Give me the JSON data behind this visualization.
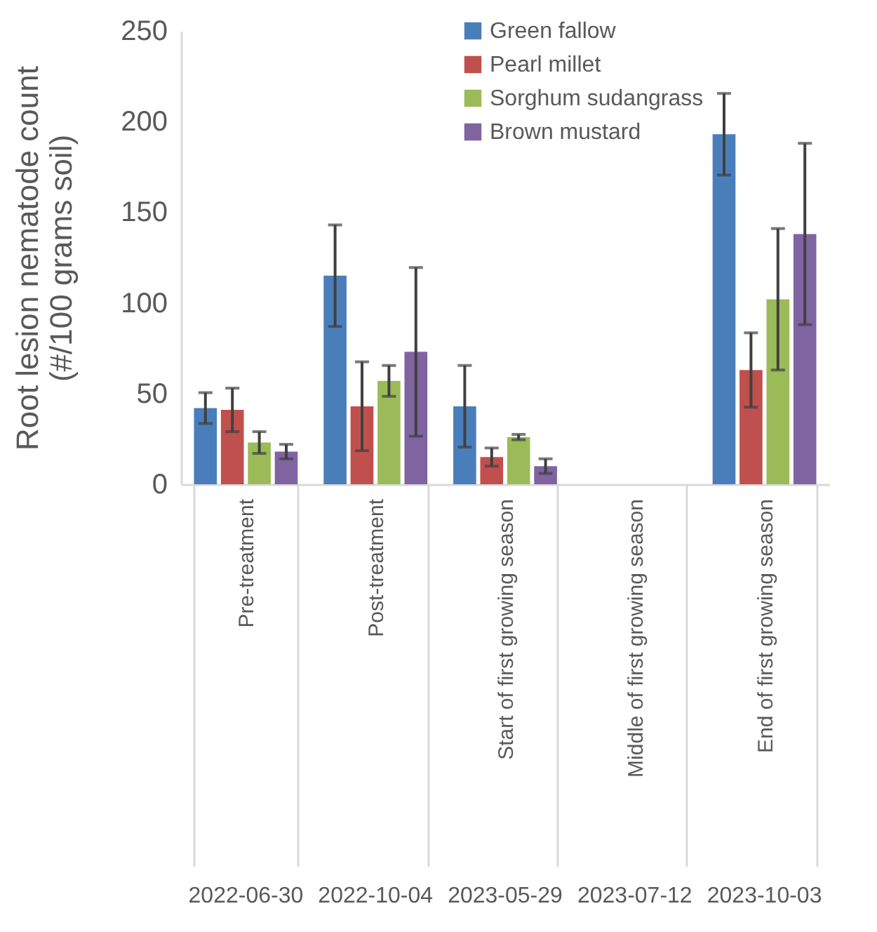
{
  "chart_data": {
    "type": "bar",
    "ylabel": "Root lesion nematode count\n(#/100 grams soil)",
    "categories": [
      "Pre-treatment",
      "Post-treatment",
      "Start of first growing season",
      "Middle of first growing season",
      "End of first growing season"
    ],
    "series": [
      {
        "name": "Green fallow",
        "color": "#4a7ebb",
        "values": [
          42,
          115,
          43,
          0,
          193
        ],
        "errors": [
          8.5,
          28,
          22.5,
          null,
          22.5
        ]
      },
      {
        "name": "Pearl millet",
        "color": "#c0504d",
        "values": [
          41,
          43,
          15,
          0,
          63
        ],
        "errors": [
          12,
          24.5,
          5,
          null,
          20.5
        ]
      },
      {
        "name": "Sorghum sudangrass",
        "color": "#9bbb59",
        "values": [
          23,
          57,
          26,
          0,
          102
        ],
        "errors": [
          6,
          8.5,
          1.5,
          null,
          39
        ]
      },
      {
        "name": "Brown mustard",
        "color": "#8064a2",
        "values": [
          18,
          73,
          10,
          0,
          138
        ],
        "errors": [
          4,
          46.5,
          4,
          null,
          50
        ]
      }
    ],
    "annotations": [
      "2022-06-30",
      "2022-10-04",
      "2023-05-29",
      "2023-07-12",
      "2023-10-03"
    ],
    "ylim": [
      0,
      250
    ],
    "yticks": [
      0,
      50,
      100,
      150,
      200,
      250
    ],
    "legend": "top"
  }
}
